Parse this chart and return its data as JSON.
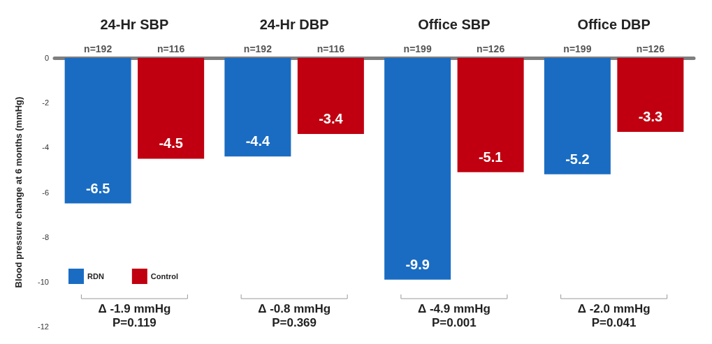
{
  "chart_data": {
    "type": "bar",
    "categories": [
      "24-Hr SBP",
      "24-Hr DBP",
      "Office SBP",
      "Office DBP"
    ],
    "ylabel": "Blood pressure change at 6 months (mmHg)",
    "series": [
      {
        "name": "RDN",
        "color": "#1a6cc2",
        "values": [
          -6.5,
          -4.4,
          -9.9,
          -5.2
        ]
      },
      {
        "name": "Control",
        "color": "#c00010",
        "values": [
          -4.5,
          -3.4,
          -5.1,
          -3.3
        ]
      }
    ],
    "ylim": [
      -12,
      0
    ],
    "yticks": [
      -12,
      -10,
      -8,
      -6,
      -4,
      -2,
      0
    ],
    "data_labels": true,
    "grid": false,
    "legend": "bottom left",
    "annotations": [
      {
        "text": "n=192",
        "x": "24-Hr SBP",
        "y": 0
      },
      {
        "text": "n=116",
        "x": "24-Hr SBP",
        "y": 0
      },
      {
        "text": "n=192",
        "x": "24-Hr DBP",
        "y": 0
      },
      {
        "text": "n=116",
        "x": "24-Hr DBP",
        "y": 0
      },
      {
        "text": "n=199",
        "x": "Office SBP",
        "y": 0
      },
      {
        "text": "n=126",
        "x": "Office SBP",
        "y": 0
      },
      {
        "text": "n=199",
        "x": "Office DBP",
        "y": 0
      },
      {
        "text": "n=126",
        "x": "Office DBP",
        "y": 0
      },
      "Δ -1.9 mmHg\nP=0.119",
      "Δ -0.8 mmHg\nP=0.369",
      "Δ -4.9 mmHg\nP=0.001",
      "Δ -2.0 mmHg\nP=0.041"
    ]
  }
}
